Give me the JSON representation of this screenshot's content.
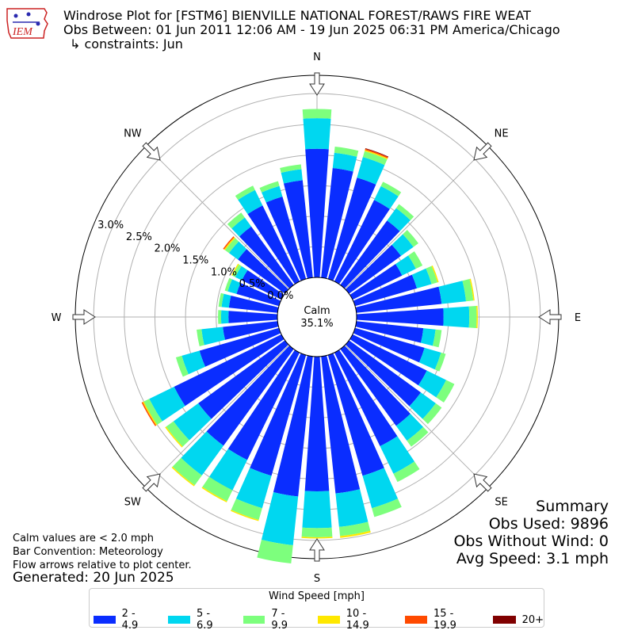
{
  "logo": {
    "text": "IEM",
    "icon": "iowa-state-outline-logo"
  },
  "title": {
    "line1": "Windrose Plot for [FSTM6] BIENVILLE NATIONAL FOREST/RAWS FIRE WEAT",
    "line2": "Obs Between: 01 Jun 2011 12:06 AM - 19 Jun 2025 06:31 PM America/Chicago",
    "line3": "↳ constraints: Jun"
  },
  "notes": {
    "calm_note": "Calm values are < 2.0 mph",
    "bar_convention": "Bar Convention: Meteorology",
    "flow_note": "Flow arrows relative to plot center."
  },
  "generated": "Generated: 20 Jun 2025",
  "summary": {
    "heading": "Summary",
    "obs_used": "Obs Used: 9896",
    "obs_without_wind": "Obs Without Wind: 0",
    "avg_speed": "Avg Speed: 3.1 mph"
  },
  "calm": {
    "label": "Calm",
    "value": "35.1%"
  },
  "chart_data": {
    "type": "windrose",
    "directions": [
      "N",
      "NE",
      "E",
      "SE",
      "S",
      "SW",
      "W",
      "NW"
    ],
    "radial_ticks": [
      "0.0%",
      "0.5%",
      "1.0%",
      "1.5%",
      "2.0%",
      "2.5%",
      "3.0%"
    ],
    "radial_tick_values": [
      0,
      0.5,
      1.0,
      1.5,
      2.0,
      2.5,
      3.0
    ],
    "rmax": 3.3,
    "legend_title": "Wind Speed [mph]",
    "bins": [
      {
        "label": "2 - 4.9",
        "color": "#0a2dff"
      },
      {
        "label": "5 - 6.9",
        "color": "#00d7f0"
      },
      {
        "label": "7 - 9.9",
        "color": "#7dff7d"
      },
      {
        "label": "10 - 14.9",
        "color": "#ffe800"
      },
      {
        "label": "15 - 19.9",
        "color": "#ff4a00"
      },
      {
        "label": "20+",
        "color": "#800000"
      }
    ],
    "sectors": [
      {
        "dir": 0,
        "values": [
          2.1,
          0.5,
          0.15,
          0,
          0,
          0
        ]
      },
      {
        "dir": 10,
        "values": [
          1.8,
          0.25,
          0.1,
          0,
          0,
          0
        ]
      },
      {
        "dir": 20,
        "values": [
          1.72,
          0.35,
          0.1,
          0.02,
          0.02,
          0.01
        ]
      },
      {
        "dir": 30,
        "values": [
          1.48,
          0.25,
          0.08,
          0,
          0,
          0
        ]
      },
      {
        "dir": 40,
        "values": [
          1.3,
          0.25,
          0.08,
          0,
          0,
          0
        ]
      },
      {
        "dir": 50,
        "values": [
          1.05,
          0.25,
          0.1,
          0,
          0,
          0
        ]
      },
      {
        "dir": 60,
        "values": [
          0.9,
          0.25,
          0.12,
          0,
          0,
          0
        ]
      },
      {
        "dir": 70,
        "values": [
          1.05,
          0.25,
          0.1,
          0.02,
          0,
          0
        ]
      },
      {
        "dir": 80,
        "values": [
          1.4,
          0.4,
          0.12,
          0.02,
          0,
          0
        ]
      },
      {
        "dir": 90,
        "values": [
          1.42,
          0.42,
          0.12,
          0.02,
          0,
          0
        ]
      },
      {
        "dir": 100,
        "values": [
          1.1,
          0.2,
          0.1,
          0,
          0,
          0
        ]
      },
      {
        "dir": 110,
        "values": [
          1.18,
          0.28,
          0.08,
          0,
          0,
          0
        ]
      },
      {
        "dir": 120,
        "values": [
          1.35,
          0.35,
          0.15,
          0,
          0,
          0
        ]
      },
      {
        "dir": 130,
        "values": [
          1.45,
          0.3,
          0.12,
          0,
          0,
          0
        ]
      },
      {
        "dir": 140,
        "values": [
          1.55,
          0.3,
          0.12,
          0,
          0,
          0
        ]
      },
      {
        "dir": 150,
        "values": [
          1.7,
          0.5,
          0.15,
          0,
          0,
          0
        ]
      },
      {
        "dir": 160,
        "values": [
          2.05,
          0.55,
          0.15,
          0,
          0,
          0
        ]
      },
      {
        "dir": 170,
        "values": [
          2.25,
          0.55,
          0.15,
          0.03,
          0,
          0
        ]
      },
      {
        "dir": 180,
        "values": [
          2.2,
          0.6,
          0.15,
          0.02,
          0,
          0
        ]
      },
      {
        "dir": 190,
        "values": [
          2.3,
          0.8,
          0.3,
          0,
          0,
          0
        ]
      },
      {
        "dir": 200,
        "values": [
          2.05,
          0.55,
          0.2,
          0.02,
          0,
          0
        ]
      },
      {
        "dir": 210,
        "values": [
          1.95,
          0.55,
          0.2,
          0.02,
          0,
          0
        ]
      },
      {
        "dir": 220,
        "values": [
          1.95,
          0.6,
          0.2,
          0.02,
          0,
          0
        ]
      },
      {
        "dir": 230,
        "values": [
          1.75,
          0.5,
          0.15,
          0.02,
          0,
          0
        ]
      },
      {
        "dir": 240,
        "values": [
          1.95,
          0.45,
          0.1,
          0.02,
          0.02,
          0
        ]
      },
      {
        "dir": 250,
        "values": [
          1.35,
          0.3,
          0.1,
          0,
          0,
          0
        ]
      },
      {
        "dir": 260,
        "values": [
          0.9,
          0.35,
          0.08,
          0,
          0,
          0
        ]
      },
      {
        "dir": 270,
        "values": [
          0.8,
          0.12,
          0.05,
          0,
          0,
          0
        ]
      },
      {
        "dir": 280,
        "values": [
          0.8,
          0.12,
          0.05,
          0,
          0,
          0
        ]
      },
      {
        "dir": 290,
        "values": [
          0.72,
          0.15,
          0.05,
          0,
          0,
          0
        ]
      },
      {
        "dir": 300,
        "values": [
          0.72,
          0.12,
          0.05,
          0.02,
          0,
          0
        ]
      },
      {
        "dir": 310,
        "values": [
          0.95,
          0.18,
          0.08,
          0.02,
          0.02,
          0
        ]
      },
      {
        "dir": 320,
        "values": [
          1.18,
          0.18,
          0.1,
          0,
          0,
          0
        ]
      },
      {
        "dir": 330,
        "values": [
          1.38,
          0.28,
          0.08,
          0,
          0,
          0
        ]
      },
      {
        "dir": 340,
        "values": [
          1.4,
          0.18,
          0.08,
          0,
          0,
          0
        ]
      },
      {
        "dir": 350,
        "values": [
          1.6,
          0.18,
          0.08,
          0,
          0,
          0
        ]
      }
    ]
  }
}
